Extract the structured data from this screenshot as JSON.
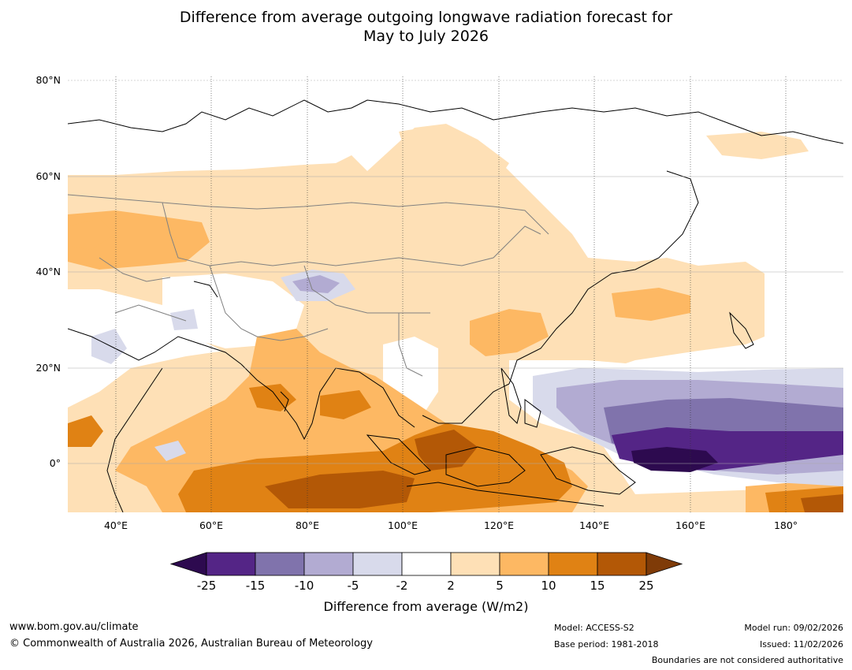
{
  "title": {
    "line1": "Difference from average outgoing longwave radiation forecast for",
    "line2": "May to July 2026"
  },
  "map": {
    "lat_labels": [
      "80°N",
      "60°N",
      "40°N",
      "20°N",
      "0°"
    ],
    "lon_labels": [
      "40°E",
      "60°E",
      "80°E",
      "100°E",
      "120°E",
      "140°E",
      "160°E",
      "180°"
    ],
    "extent": {
      "lon_min": 30,
      "lon_max": 192,
      "lat_min": -10,
      "lat_max": 81
    }
  },
  "colorbar": {
    "ticks": [
      "-25",
      "-15",
      "-10",
      "-5",
      "-2",
      "2",
      "5",
      "10",
      "15",
      "25"
    ],
    "colors": [
      "#2d0a4f",
      "#542586",
      "#8073ac",
      "#b2abd2",
      "#d8daeb",
      "#ffffff",
      "#fee0b6",
      "#fdb863",
      "#e08214",
      "#b35806",
      "#7f3b08"
    ],
    "label": "Difference from average (W/m2)"
  },
  "footer": {
    "url": "www.bom.gov.au/climate",
    "copyright": "© Commonwealth of Australia 2026, Australian Bureau of Meteorology",
    "model": "Model: ACCESS-S2",
    "base_period": "Base period: 1981-2018",
    "model_run": "Model run: 09/02/2026",
    "issued": "Issued: 11/02/2026",
    "disclaimer": "Boundaries are not considered authoritative"
  }
}
